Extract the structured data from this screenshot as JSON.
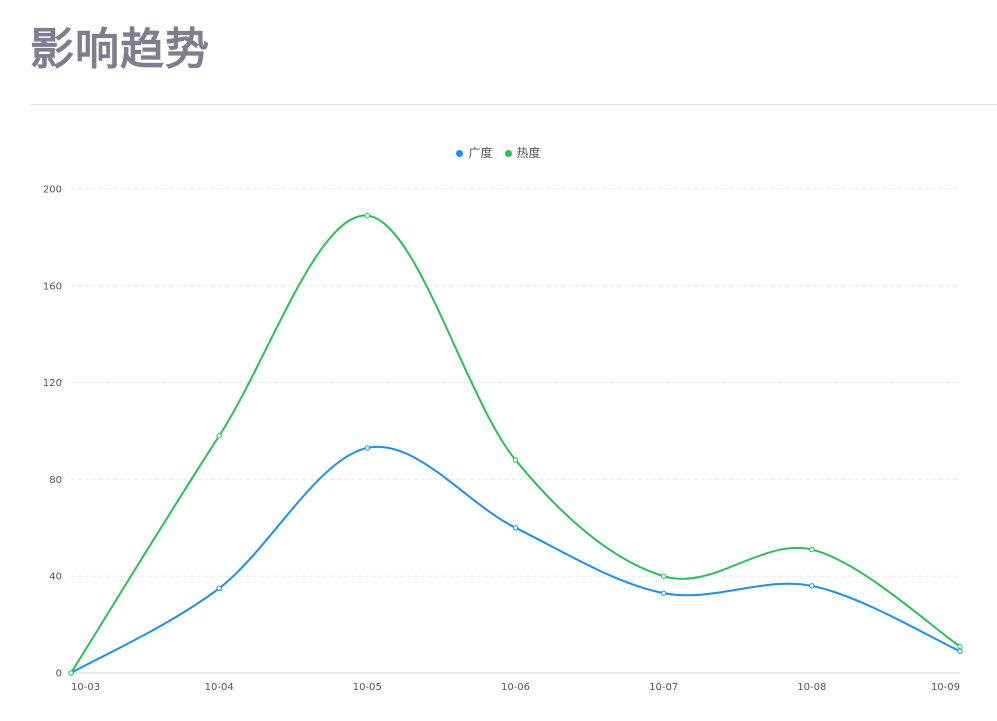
{
  "title": "影响趋势",
  "colors": {
    "series_1": "#1e8ff2",
    "series_2": "#2bbf5b",
    "grid": "#e8e8e8"
  },
  "chart_data": {
    "type": "line",
    "smooth": true,
    "categories": [
      "10-03",
      "10-04",
      "10-05",
      "10-06",
      "10-07",
      "10-08",
      "10-09"
    ],
    "series": [
      {
        "name": "广度",
        "color": "#1e8ff2",
        "values": [
          0,
          35,
          93,
          60,
          33,
          36,
          9
        ]
      },
      {
        "name": "热度",
        "color": "#2bbf5b",
        "values": [
          0,
          98,
          189,
          88,
          40,
          51,
          11
        ]
      }
    ],
    "yticks": [
      0,
      40,
      80,
      120,
      160,
      200
    ],
    "ylim": [
      0,
      200
    ],
    "grid": true,
    "legend_position": "top-center"
  }
}
